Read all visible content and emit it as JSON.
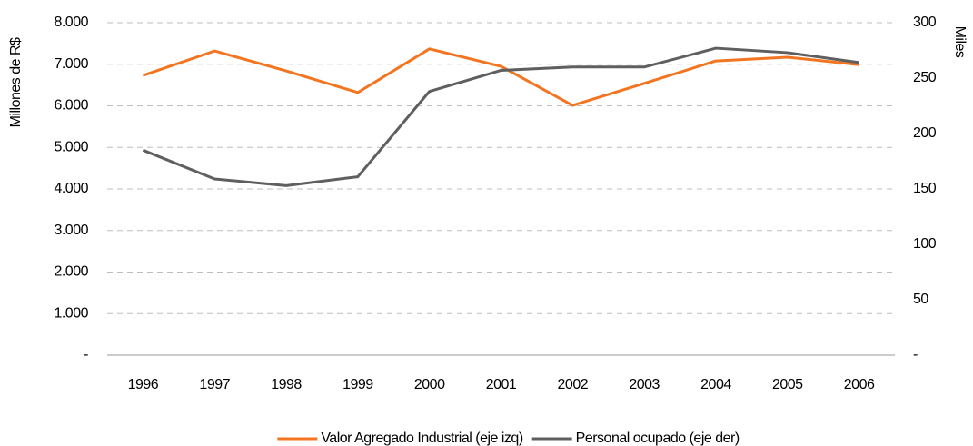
{
  "chart_data": {
    "type": "line",
    "categories": [
      "1996",
      "1997",
      "1998",
      "1999",
      "2000",
      "2001",
      "2002",
      "2003",
      "2004",
      "2005",
      "2006"
    ],
    "series": [
      {
        "name": "Valor Agregado Industrial (eje izq)",
        "color": "#f47521",
        "axis": "y",
        "values": [
          6730,
          7320,
          6840,
          6320,
          7370,
          6950,
          6010,
          6540,
          7080,
          7170,
          6990
        ]
      },
      {
        "name": "Personal ocupado (eje der)",
        "color": "#5f5f5f",
        "axis": "y2",
        "values": [
          185,
          159,
          153,
          161,
          238,
          257,
          260,
          260,
          277,
          273,
          264
        ]
      }
    ],
    "ylabel": "Millones de R$",
    "y2label": "Miles",
    "ylim": [
      0,
      8000
    ],
    "yticks": [
      {
        "value": 0,
        "label": "-"
      },
      {
        "value": 1000,
        "label": "1.000"
      },
      {
        "value": 2000,
        "label": "2.000"
      },
      {
        "value": 3000,
        "label": "3.000"
      },
      {
        "value": 4000,
        "label": "4.000"
      },
      {
        "value": 5000,
        "label": "5.000"
      },
      {
        "value": 6000,
        "label": "6.000"
      },
      {
        "value": 7000,
        "label": "7.000"
      },
      {
        "value": 8000,
        "label": "8.000"
      }
    ],
    "y2lim": [
      0,
      300
    ],
    "y2ticks": [
      {
        "value": 0,
        "label": "-"
      },
      50,
      100,
      150,
      200,
      250,
      300
    ],
    "grid": true,
    "legend": "bottom"
  }
}
